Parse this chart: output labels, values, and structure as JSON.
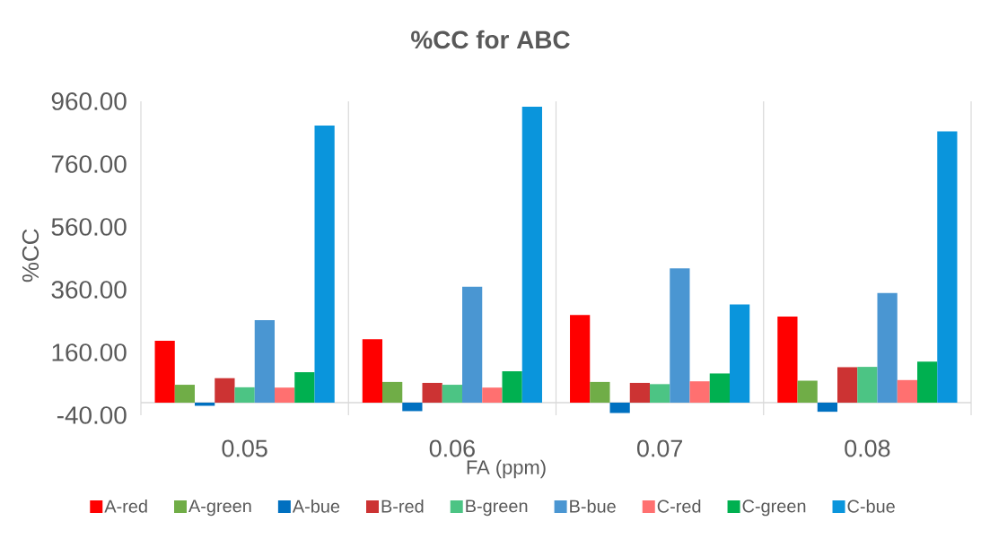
{
  "chart_data": {
    "type": "bar",
    "title": "%CC for ABC",
    "xlabel": "FA (ppm)",
    "ylabel": "%CC",
    "categories": [
      "0.05",
      "0.06",
      "0.07",
      "0.08"
    ],
    "series": [
      {
        "name": "A-red",
        "color": "#ff0000",
        "values": [
          197,
          202,
          279,
          274
        ]
      },
      {
        "name": "A-green",
        "color": "#70ad47",
        "values": [
          57,
          66,
          66,
          70
        ]
      },
      {
        "name": "A-bue",
        "color": "#0070c0",
        "values": [
          -10,
          -27,
          -33,
          -29
        ]
      },
      {
        "name": "B-red",
        "color": "#cc3333",
        "values": [
          78,
          63,
          63,
          113
        ]
      },
      {
        "name": "B-green",
        "color": "#4cc484",
        "values": [
          49,
          57,
          59,
          114
        ]
      },
      {
        "name": "B-bue",
        "color": "#4a96d2",
        "values": [
          263,
          369,
          428,
          349
        ]
      },
      {
        "name": "C-red",
        "color": "#ff7070",
        "values": [
          48,
          48,
          68,
          72
        ]
      },
      {
        "name": "C-green",
        "color": "#00b050",
        "values": [
          97,
          100,
          93,
          131
        ]
      },
      {
        "name": "C-bue",
        "color": "#0a95dc",
        "values": [
          883,
          943,
          313,
          864
        ]
      }
    ],
    "ylim": [
      -40,
      960
    ],
    "yticks": [
      {
        "value": -40,
        "label": "-40.00"
      },
      {
        "value": 160,
        "label": "160.00"
      },
      {
        "value": 360,
        "label": "360.00"
      },
      {
        "value": 560,
        "label": "560.00"
      },
      {
        "value": 760,
        "label": "760.00"
      },
      {
        "value": 960,
        "label": "960.00"
      }
    ],
    "grid": "x",
    "legend": "bottom"
  }
}
